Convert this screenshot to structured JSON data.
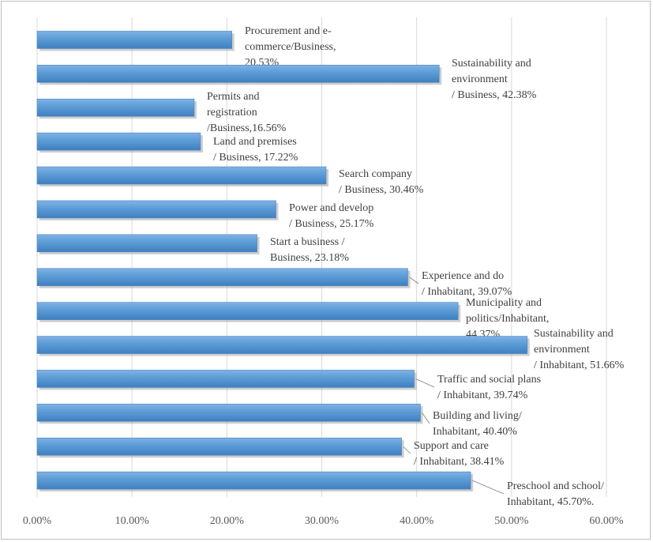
{
  "chart_data": {
    "type": "bar",
    "orientation": "horizontal",
    "title": "",
    "xlabel": "",
    "ylabel": "",
    "xlim": [
      0,
      0.6
    ],
    "x_ticks": [
      "0.00%",
      "10.00%",
      "20.00%",
      "30.00%",
      "40.00%",
      "50.00%",
      "60.00%"
    ],
    "grid": "vertical",
    "legend": "none",
    "bar_color": "#5b9bd5",
    "bars": [
      {
        "category": "Procurement and e-commerce/Business",
        "value": 0.2053,
        "label_lines": [
          "Procurement and e-",
          "commerce/Business,",
          "20.53%"
        ]
      },
      {
        "category": "Sustainability and environment / Business",
        "value": 0.4238,
        "label_lines": [
          "Sustainability and",
          "environment",
          "/ Business, 42.38%"
        ]
      },
      {
        "category": "Permits and registration /Business",
        "value": 0.1656,
        "label_lines": [
          "Permits and",
          "registration",
          "/Business,16.56%"
        ]
      },
      {
        "category": "Land and premises / Business",
        "value": 0.1722,
        "label_lines": [
          "Land and premises",
          "/ Business, 17.22%"
        ]
      },
      {
        "category": "Search company / Business",
        "value": 0.3046,
        "label_lines": [
          "Search company",
          "/ Business, 30.46%"
        ]
      },
      {
        "category": "Power and develop / Business",
        "value": 0.2517,
        "label_lines": [
          "Power and develop",
          "/ Business, 25.17%"
        ]
      },
      {
        "category": "Start a business / Business",
        "value": 0.2318,
        "label_lines": [
          "Start a business /",
          "Business, 23.18%"
        ]
      },
      {
        "category": "Experience and do / Inhabitant",
        "value": 0.3907,
        "label_lines": [
          "Experience and do",
          "/ Inhabitant, 39.07%"
        ]
      },
      {
        "category": "Municipality and politics/Inhabitant",
        "value": 0.4437,
        "label_lines": [
          "Municipality and",
          "politics/Inhabitant,",
          "44.37%"
        ]
      },
      {
        "category": "Sustainability and environment / Inhabitant",
        "value": 0.5166,
        "label_lines": [
          "Sustainability and",
          "environment",
          "/ Inhabitant, 51.66%"
        ]
      },
      {
        "category": "Traffic and social plans / Inhabitant",
        "value": 0.3974,
        "label_lines": [
          "Traffic and social plans",
          "/ Inhabitant, 39.74%"
        ]
      },
      {
        "category": "Building and living/ Inhabitant",
        "value": 0.404,
        "label_lines": [
          "Building and living/",
          "Inhabitant, 40.40%"
        ]
      },
      {
        "category": "Support and care / Inhabitant",
        "value": 0.3841,
        "label_lines": [
          "Support and care",
          "/ Inhabitant, 38.41%"
        ]
      },
      {
        "category": "Preschool and school/ Inhabitant",
        "value": 0.457,
        "label_lines": [
          "Preschool and school/",
          "Inhabitant, 45.70%."
        ]
      }
    ]
  }
}
